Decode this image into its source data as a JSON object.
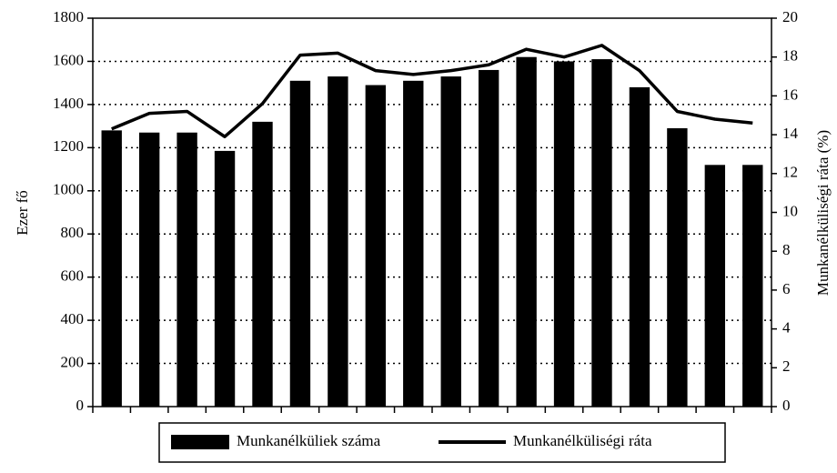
{
  "chart_data": {
    "type": "bar_line",
    "categories": [
      null,
      null,
      null,
      null,
      null,
      null,
      null,
      null,
      null,
      null,
      null,
      null,
      null,
      null,
      null,
      null,
      null,
      null
    ],
    "series": [
      {
        "name": "Munkanélküliek száma",
        "color": "#000000",
        "type": "bar",
        "axis": "y",
        "values": [
          1280,
          1270,
          1270,
          1185,
          1320,
          1510,
          1530,
          1490,
          1510,
          1530,
          1560,
          1620,
          1600,
          1610,
          1480,
          1290,
          1120,
          1120
        ]
      },
      {
        "name": "Munkanélküliségi ráta",
        "color": "#000000",
        "type": "line",
        "axis": "y2",
        "values": [
          14.3,
          15.1,
          15.2,
          13.9,
          15.6,
          18.1,
          18.2,
          17.3,
          17.1,
          17.3,
          17.6,
          18.4,
          18.0,
          18.6,
          17.3,
          15.2,
          14.8,
          14.6
        ]
      }
    ],
    "ylabel": "Ezer fő",
    "y2label": "Munkanélküliségi ráta (%)",
    "ylim": [
      0,
      1800
    ],
    "yticks": [
      0,
      200,
      400,
      600,
      800,
      1000,
      1200,
      1400,
      1600,
      1800
    ],
    "y2lim": [
      0,
      20
    ],
    "y2ticks": [
      0,
      2,
      4,
      6,
      8,
      10,
      12,
      14,
      16,
      18,
      20
    ],
    "grid": true,
    "legend": "bottom"
  }
}
